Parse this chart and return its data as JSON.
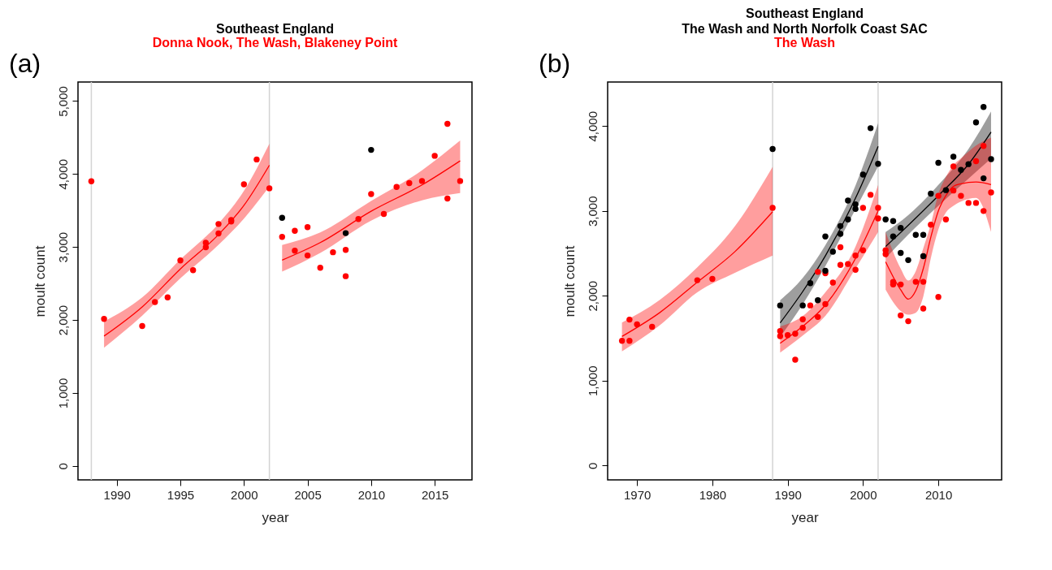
{
  "chart_data": [
    {
      "type": "scatter",
      "title": "Southeast England",
      "subtitle": "Donna Nook, The Wash, Blakeney Point",
      "xlabel": "year",
      "ylabel": "moult count",
      "annotations": [
        "(a)"
      ],
      "marker": "circle",
      "grid": false,
      "xlim": [
        1986.95,
        2017.93
      ],
      "ylim": [
        -190,
        5260
      ],
      "xticks": [
        {
          "value": 1990,
          "label": "1990"
        },
        {
          "value": 1995,
          "label": "1995"
        },
        {
          "value": 2000,
          "label": "2000"
        },
        {
          "value": 2005,
          "label": "2005"
        },
        {
          "value": 2010,
          "label": "2010"
        },
        {
          "value": 2015,
          "label": "2015"
        }
      ],
      "yticks": [
        0,
        {
          "value": 1000,
          "label": "1,000"
        },
        {
          "value": 2000,
          "label": "2,000"
        },
        {
          "value": 3000,
          "label": "3,000"
        },
        {
          "value": 4000,
          "label": "4,000"
        },
        {
          "value": 5000,
          "label": "5,000"
        }
      ],
      "ref_lines": [
        {
          "axis": "x",
          "value": 1988,
          "color": "#d3d3d3"
        },
        {
          "axis": "x",
          "value": 2002,
          "color": "#d3d3d3"
        }
      ],
      "series": [
        {
          "type": "line",
          "marker": "none",
          "color": "#ff0000",
          "x": [
            1989,
            1992,
            1995,
            1998,
            2000,
            2002
          ],
          "values": [
            1780,
            2180,
            2700,
            3170,
            3570,
            4120
          ],
          "lower": [
            1620,
            2060,
            2570,
            3030,
            3390,
            3829
          ],
          "upper": [
            1980,
            2310,
            2830,
            3320,
            3770,
            4415
          ]
        },
        {
          "type": "line",
          "marker": "none",
          "color": "#ff0000",
          "x": [
            2003,
            2006,
            2010,
            2014,
            2017
          ],
          "values": [
            2820,
            3060,
            3490,
            3850,
            4180
          ],
          "lower": [
            2662,
            2920,
            3362,
            3640,
            3739
          ],
          "upper": [
            3028,
            3200,
            3631,
            4050,
            4458
          ]
        },
        {
          "color": "#ff0000",
          "x": [
            1989,
            1992,
            1993,
            1994,
            1995,
            1996,
            1997,
            1997,
            1998,
            1998,
            1999,
            1999,
            2000,
            2001,
            2002,
            2003,
            2004,
            2004,
            2005,
            2005,
            2006,
            2007,
            2008,
            2008,
            2009,
            2010,
            2011,
            2012,
            2013,
            2014,
            2015,
            2016,
            2016,
            2017
          ],
          "values": [
            2015,
            1918,
            2245,
            2310,
            2816,
            2683,
            3057,
            2996,
            3315,
            3186,
            3370,
            3350,
            3858,
            4199,
            3804,
            3139,
            3222,
            2949,
            3272,
            2884,
            2715,
            2928,
            2960,
            2600,
            3384,
            3725,
            3452,
            3822,
            3876,
            3904,
            4249,
            4688,
            3664,
            3904
          ]
        },
        {
          "color": "#ff0000",
          "x": [
            1988
          ],
          "values": [
            3900
          ]
        },
        {
          "color": "#000000",
          "x": [
            2003,
            2008,
            2010
          ],
          "values": [
            3400,
            3190,
            4330
          ]
        }
      ]
    },
    {
      "type": "scatter",
      "title": "Southeast England\nThe Wash and North Norfolk Coast SAC",
      "subtitle": "The Wash",
      "xlabel": "year",
      "ylabel": "moult count",
      "annotations": [
        "(b)"
      ],
      "marker": "circle",
      "grid": false,
      "xlim": [
        1966.1,
        2018.4
      ],
      "ylim": [
        -170,
        4519
      ],
      "xticks": [
        {
          "value": 1970,
          "label": "1970"
        },
        {
          "value": 1980,
          "label": "1980"
        },
        {
          "value": 1990,
          "label": "1990"
        },
        {
          "value": 2000,
          "label": "2000"
        },
        {
          "value": 2010,
          "label": "2010"
        }
      ],
      "yticks": [
        0,
        {
          "value": 1000,
          "label": "1,000"
        },
        {
          "value": 2000,
          "label": "2,000"
        },
        {
          "value": 3000,
          "label": "3,000"
        },
        {
          "value": 4000,
          "label": "4,000"
        }
      ],
      "ref_lines": [
        {
          "axis": "x",
          "value": 1988,
          "color": "#d3d3d3"
        },
        {
          "axis": "x",
          "value": 2002,
          "color": "#d3d3d3"
        }
      ],
      "series": [
        {
          "type": "line",
          "marker": "none",
          "color": "#ff0000",
          "x": [
            1968,
            1973,
            1978,
            1983,
            1988
          ],
          "values": [
            1520,
            1800,
            2160,
            2520,
            2990
          ],
          "lower": [
            1345,
            1650,
            2040,
            2270,
            2473
          ],
          "upper": [
            1685,
            1950,
            2334,
            2820,
            3518
          ]
        },
        {
          "type": "line",
          "marker": "none",
          "color": "#000000",
          "x": [
            1989,
            1992,
            1995,
            1999,
            2002
          ],
          "values": [
            1680,
            2050,
            2470,
            3150,
            3760
          ],
          "lower": [
            1515,
            1900,
            2349,
            3020,
            3524
          ],
          "upper": [
            1947,
            2210,
            2596,
            3300,
            4033
          ]
        },
        {
          "type": "line",
          "marker": "none",
          "color": "#ff0000",
          "x": [
            1989,
            1992,
            1995,
            1999,
            2002
          ],
          "values": [
            1440,
            1640,
            1890,
            2440,
            3000
          ],
          "lower": [
            1329,
            1530,
            1762,
            2320,
            2751
          ],
          "upper": [
            1638,
            1760,
            2040,
            2580,
            3307
          ]
        },
        {
          "type": "line",
          "marker": "none",
          "color": "#000000",
          "x": [
            2003,
            2006,
            2010,
            2014,
            2017
          ],
          "values": [
            2580,
            2830,
            3180,
            3550,
            3930
          ],
          "lower": [
            2442,
            2720,
            3060,
            3380,
            3616
          ],
          "upper": [
            2751,
            2950,
            3307,
            3730,
            4172
          ]
        },
        {
          "type": "line",
          "marker": "none",
          "color": "#ff0000",
          "x": [
            2003,
            2005,
            2006,
            2007,
            2008,
            2009,
            2010,
            2011,
            2012,
            2013,
            2015,
            2017
          ],
          "values": [
            2400,
            2070,
            1960,
            2060,
            2320,
            2690,
            3000,
            3180,
            3290,
            3320,
            3340,
            3310
          ],
          "lower": [
            2071,
            1820,
            1777,
            1800,
            1990,
            2442,
            2780,
            2980,
            3060,
            3110,
            3153,
            2751
          ],
          "upper": [
            2751,
            2320,
            2179,
            2290,
            2560,
            2844,
            3200,
            3400,
            3539,
            3620,
            3771,
            3864
          ]
        },
        {
          "color": "#ff0000",
          "x": [
            1968,
            1969,
            1969,
            1970,
            1972,
            1978,
            1980,
            1988,
            1989,
            1989,
            1990,
            1991,
            1991,
            1992,
            1992,
            1993,
            1994,
            1994,
            1995,
            1995,
            1996,
            1997,
            1997,
            1998,
            1999,
            1999,
            2000,
            2000,
            2001,
            2002,
            2002,
            2003,
            2003,
            2004,
            2004,
            2005,
            2005,
            2006,
            2007,
            2008,
            2008,
            2009,
            2010,
            2010,
            2011,
            2012,
            2012,
            2013,
            2014,
            2015,
            2015,
            2016,
            2016,
            2017
          ],
          "values": [
            1469,
            1469,
            1719,
            1663,
            1635,
            2183,
            2198,
            3036,
            1583,
            1524,
            1536,
            1552,
            1246,
            1722,
            1623,
            1886,
            2281,
            1750,
            2266,
            1901,
            2155,
            2572,
            2364,
            2374,
            2473,
            2306,
            3036,
            2535,
            3190,
            3036,
            2912,
            2535,
            2491,
            2164,
            2133,
            2133,
            1768,
            1700,
            2164,
            2164,
            1849,
            2837,
            3178,
            1985,
            2899,
            3524,
            3240,
            3178,
            3094,
            3586,
            3094,
            3765,
            2999,
            3218
          ]
        },
        {
          "color": "#000000",
          "x": [
            1989,
            1992,
            1993,
            1994,
            1995,
            1995,
            1996,
            1997,
            1997,
            1998,
            1998,
            1999,
            1999,
            2000,
            2001,
            2002,
            2003,
            2004,
            2004,
            2005,
            2005,
            2006,
            2007,
            2008,
            2008,
            2009,
            2010,
            2011,
            2012,
            2013,
            2014,
            2015,
            2016,
            2016,
            2017
          ],
          "values": [
            1886,
            1886,
            2148,
            1947,
            2698,
            2294,
            2519,
            2822,
            2730,
            3122,
            2899,
            3078,
            3023,
            3428,
            3975,
            3555,
            2899,
            2881,
            2698,
            2800,
            2504,
            2420,
            2717,
            2717,
            2466,
            3203,
            3567,
            3245,
            3638,
            3483,
            3551,
            4043,
            4225,
            3384,
            3610
          ]
        },
        {
          "color": "#000000",
          "x": [
            1988
          ],
          "values": [
            3730
          ]
        }
      ]
    }
  ]
}
